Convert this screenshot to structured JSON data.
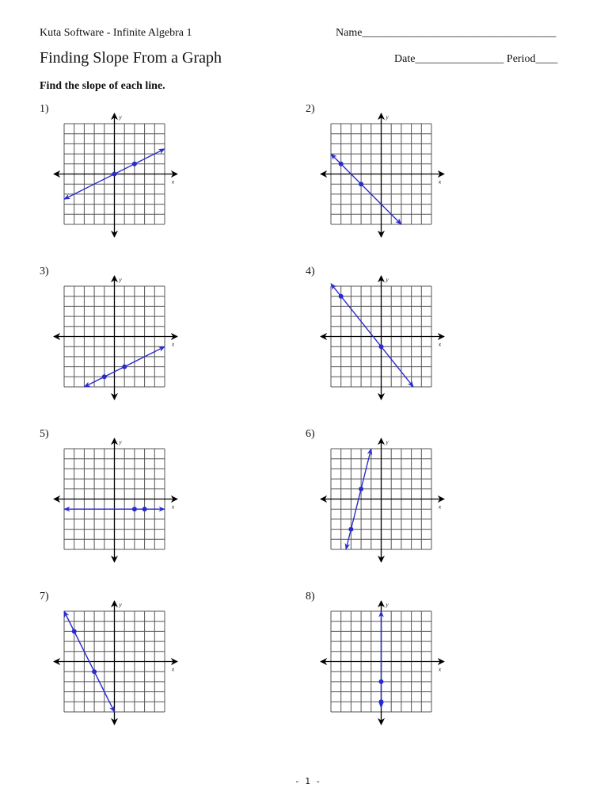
{
  "header": {
    "publisher": "Kuta Software - Infinite Algebra 1",
    "name_field": "Name___________________________________",
    "title": "Finding Slope From a Graph",
    "date_period": "Date________________  Period____",
    "instructions": "Find the slope of each line."
  },
  "axis_labels": {
    "x": "x",
    "y": "y"
  },
  "colors": {
    "line": "#2a2ad0",
    "grid": "#555555",
    "axis": "#000000"
  },
  "grid_range": {
    "xmin": -5,
    "xmax": 5,
    "ymin": -5,
    "ymax": 5
  },
  "problems": [
    {
      "label": "1)",
      "points": [
        [
          0,
          0
        ],
        [
          2,
          1
        ]
      ],
      "line": [
        [
          -5,
          -2.5
        ],
        [
          5,
          2.5
        ]
      ]
    },
    {
      "label": "2)",
      "points": [
        [
          -4,
          1
        ],
        [
          -2,
          -1
        ]
      ],
      "line": [
        [
          -5,
          2
        ],
        [
          2,
          -5
        ]
      ]
    },
    {
      "label": "3)",
      "points": [
        [
          -1,
          -4
        ],
        [
          1,
          -3
        ]
      ],
      "line": [
        [
          -3,
          -5
        ],
        [
          5,
          -1
        ]
      ]
    },
    {
      "label": "4)",
      "points": [
        [
          -4,
          4
        ],
        [
          0,
          -1
        ]
      ],
      "line": [
        [
          -5,
          5.25
        ],
        [
          3.2,
          -5
        ]
      ]
    },
    {
      "label": "5)",
      "points": [
        [
          2,
          -1
        ],
        [
          3,
          -1
        ]
      ],
      "line": [
        [
          -5,
          -1
        ],
        [
          5,
          -1
        ]
      ]
    },
    {
      "label": "6)",
      "points": [
        [
          -3,
          -3
        ],
        [
          -2,
          1
        ]
      ],
      "line": [
        [
          -3.5,
          -5
        ],
        [
          -1,
          5
        ]
      ]
    },
    {
      "label": "7)",
      "points": [
        [
          -4,
          3
        ],
        [
          -2,
          -1
        ]
      ],
      "line": [
        [
          -5,
          5
        ],
        [
          0,
          -5
        ]
      ]
    },
    {
      "label": "8)",
      "points": [
        [
          0,
          -2
        ],
        [
          0,
          -4
        ]
      ],
      "line": [
        [
          0,
          -4.6
        ],
        [
          0,
          5
        ]
      ]
    }
  ],
  "footer": {
    "page_number": "- 1 -"
  }
}
